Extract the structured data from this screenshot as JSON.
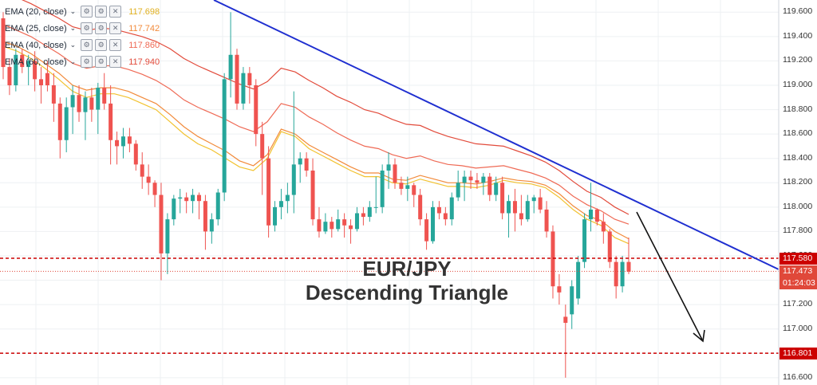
{
  "chart_data": {
    "type": "candlestick",
    "title": "EUR/JPY",
    "subtitle": "Descending Triangle",
    "y_ticks": [
      "119.600",
      "119.400",
      "119.200",
      "119.000",
      "118.800",
      "118.600",
      "118.400",
      "118.200",
      "118.000",
      "117.800",
      "117.600",
      "117.400",
      "117.200",
      "117.000",
      "116.800",
      "116.600"
    ],
    "ylim": [
      116.54,
      119.7
    ],
    "grid": true,
    "indicators": [
      {
        "name": "EMA (20, close)",
        "value": "117.698",
        "color": "#f2c230"
      },
      {
        "name": "EMA (25, close)",
        "value": "117.742",
        "color": "#f28a3a"
      },
      {
        "name": "EMA (40, close)",
        "value": "117.860",
        "color": "#ef6a55"
      },
      {
        "name": "EMA (60, close)",
        "value": "117.940",
        "color": "#e24b3b"
      }
    ],
    "ema_lines": [
      [
        119.32,
        119.28,
        119.22,
        119.14,
        119.05,
        118.95,
        118.9,
        118.93,
        118.93,
        118.9,
        118.85,
        118.8,
        118.7,
        118.6,
        118.52,
        118.47,
        118.4,
        118.33,
        118.3,
        118.4,
        118.62,
        118.58,
        118.48,
        118.42,
        118.36,
        118.3,
        118.25,
        118.25,
        118.2,
        118.19,
        118.23,
        118.2,
        118.17,
        118.17,
        118.16,
        118.18,
        118.22,
        118.2,
        118.19,
        118.16,
        118.08,
        117.98,
        117.9,
        117.85,
        117.75,
        117.7
      ],
      [
        119.36,
        119.32,
        119.26,
        119.18,
        119.1,
        119.0,
        118.96,
        118.98,
        118.98,
        118.95,
        118.9,
        118.85,
        118.76,
        118.66,
        118.58,
        118.52,
        118.46,
        118.38,
        118.34,
        118.43,
        118.64,
        118.6,
        118.51,
        118.45,
        118.39,
        118.33,
        118.28,
        118.28,
        118.23,
        118.22,
        118.26,
        118.23,
        118.2,
        118.2,
        118.19,
        118.21,
        118.24,
        118.22,
        118.21,
        118.18,
        118.11,
        118.01,
        117.93,
        117.89,
        117.8,
        117.74
      ],
      [
        119.5,
        119.45,
        119.4,
        119.33,
        119.26,
        119.18,
        119.14,
        119.16,
        119.16,
        119.13,
        119.09,
        119.04,
        118.97,
        118.88,
        118.82,
        118.77,
        118.72,
        118.66,
        118.62,
        118.7,
        118.85,
        118.82,
        118.74,
        118.68,
        118.61,
        118.55,
        118.5,
        118.48,
        118.43,
        118.4,
        118.42,
        118.38,
        118.35,
        118.34,
        118.32,
        118.33,
        118.34,
        118.31,
        118.28,
        118.24,
        118.18,
        118.09,
        118.02,
        117.97,
        117.9,
        117.86
      ],
      [
        119.75,
        119.72,
        119.67,
        119.61,
        119.55,
        119.48,
        119.45,
        119.47,
        119.46,
        119.43,
        119.4,
        119.36,
        119.3,
        119.22,
        119.16,
        119.11,
        119.06,
        119.01,
        118.97,
        119.03,
        119.14,
        119.11,
        119.04,
        118.98,
        118.91,
        118.86,
        118.8,
        118.77,
        118.72,
        118.68,
        118.67,
        118.62,
        118.58,
        118.55,
        118.52,
        118.51,
        118.5,
        118.46,
        118.42,
        118.37,
        118.3,
        118.21,
        118.13,
        118.08,
        118.0,
        117.94
      ]
    ],
    "candles": [
      {
        "o": 119.55,
        "h": 119.6,
        "l": 119.05,
        "c": 119.15
      },
      {
        "o": 119.15,
        "h": 119.22,
        "l": 118.92,
        "c": 119.0
      },
      {
        "o": 119.0,
        "h": 119.3,
        "l": 118.95,
        "c": 119.25
      },
      {
        "o": 119.25,
        "h": 119.3,
        "l": 119.1,
        "c": 119.15
      },
      {
        "o": 119.15,
        "h": 119.25,
        "l": 119.0,
        "c": 119.2
      },
      {
        "o": 119.2,
        "h": 119.28,
        "l": 118.95,
        "c": 119.05
      },
      {
        "o": 119.05,
        "h": 119.15,
        "l": 118.85,
        "c": 119.0
      },
      {
        "o": 119.1,
        "h": 119.2,
        "l": 118.95,
        "c": 119.0
      },
      {
        "o": 119.0,
        "h": 119.1,
        "l": 118.7,
        "c": 118.85
      },
      {
        "o": 118.85,
        "h": 118.9,
        "l": 118.4,
        "c": 118.55
      },
      {
        "o": 118.55,
        "h": 118.9,
        "l": 118.45,
        "c": 118.82
      },
      {
        "o": 118.82,
        "h": 119.0,
        "l": 118.6,
        "c": 118.92
      },
      {
        "o": 118.92,
        "h": 119.0,
        "l": 118.7,
        "c": 118.78
      },
      {
        "o": 118.78,
        "h": 118.95,
        "l": 118.55,
        "c": 118.9
      },
      {
        "o": 118.9,
        "h": 118.98,
        "l": 118.7,
        "c": 118.8
      },
      {
        "o": 118.8,
        "h": 119.02,
        "l": 118.6,
        "c": 118.98
      },
      {
        "o": 118.98,
        "h": 119.1,
        "l": 118.8,
        "c": 118.85
      },
      {
        "o": 118.85,
        "h": 119.0,
        "l": 118.35,
        "c": 118.55
      },
      {
        "o": 118.55,
        "h": 118.62,
        "l": 118.35,
        "c": 118.5
      },
      {
        "o": 118.5,
        "h": 118.65,
        "l": 118.4,
        "c": 118.58
      },
      {
        "o": 118.58,
        "h": 118.65,
        "l": 118.45,
        "c": 118.52
      },
      {
        "o": 118.52,
        "h": 118.55,
        "l": 118.3,
        "c": 118.35
      },
      {
        "o": 118.35,
        "h": 118.45,
        "l": 118.15,
        "c": 118.25
      },
      {
        "o": 118.25,
        "h": 118.35,
        "l": 118.1,
        "c": 118.2
      },
      {
        "o": 118.2,
        "h": 118.22,
        "l": 118.0,
        "c": 118.1
      },
      {
        "o": 118.1,
        "h": 118.2,
        "l": 117.4,
        "c": 117.62
      },
      {
        "o": 117.62,
        "h": 117.95,
        "l": 117.45,
        "c": 117.9
      },
      {
        "o": 117.9,
        "h": 118.1,
        "l": 117.85,
        "c": 118.07
      },
      {
        "o": 118.07,
        "h": 118.15,
        "l": 117.95,
        "c": 118.08
      },
      {
        "o": 118.08,
        "h": 118.12,
        "l": 117.95,
        "c": 118.05
      },
      {
        "o": 118.05,
        "h": 118.15,
        "l": 117.95,
        "c": 118.1
      },
      {
        "o": 118.1,
        "h": 118.12,
        "l": 117.9,
        "c": 118.05
      },
      {
        "o": 118.05,
        "h": 118.1,
        "l": 117.65,
        "c": 117.8
      },
      {
        "o": 117.8,
        "h": 117.95,
        "l": 117.7,
        "c": 117.9
      },
      {
        "o": 117.9,
        "h": 118.15,
        "l": 117.85,
        "c": 118.12
      },
      {
        "o": 118.12,
        "h": 119.1,
        "l": 118.05,
        "c": 119.05
      },
      {
        "o": 119.05,
        "h": 119.6,
        "l": 118.9,
        "c": 119.25
      },
      {
        "o": 119.25,
        "h": 119.3,
        "l": 118.8,
        "c": 118.85
      },
      {
        "o": 118.85,
        "h": 119.15,
        "l": 118.8,
        "c": 119.1
      },
      {
        "o": 119.1,
        "h": 119.15,
        "l": 118.85,
        "c": 119.0
      },
      {
        "o": 119.0,
        "h": 119.05,
        "l": 118.5,
        "c": 118.6
      },
      {
        "o": 118.6,
        "h": 118.7,
        "l": 118.1,
        "c": 118.4
      },
      {
        "o": 118.4,
        "h": 118.5,
        "l": 117.75,
        "c": 117.85
      },
      {
        "o": 117.85,
        "h": 118.05,
        "l": 117.8,
        "c": 118.0
      },
      {
        "o": 118.0,
        "h": 118.15,
        "l": 117.9,
        "c": 118.05
      },
      {
        "o": 118.05,
        "h": 118.2,
        "l": 117.95,
        "c": 118.1
      },
      {
        "o": 118.1,
        "h": 118.95,
        "l": 117.95,
        "c": 118.35
      },
      {
        "o": 118.35,
        "h": 118.45,
        "l": 118.2,
        "c": 118.4
      },
      {
        "o": 118.4,
        "h": 118.45,
        "l": 118.25,
        "c": 118.3
      },
      {
        "o": 118.3,
        "h": 118.4,
        "l": 117.85,
        "c": 117.9
      },
      {
        "o": 117.9,
        "h": 118.0,
        "l": 117.75,
        "c": 117.8
      },
      {
        "o": 117.8,
        "h": 117.95,
        "l": 117.78,
        "c": 117.88
      },
      {
        "o": 117.88,
        "h": 117.92,
        "l": 117.75,
        "c": 117.82
      },
      {
        "o": 117.82,
        "h": 117.98,
        "l": 117.8,
        "c": 117.9
      },
      {
        "o": 117.9,
        "h": 117.95,
        "l": 117.75,
        "c": 117.85
      },
      {
        "o": 117.85,
        "h": 117.9,
        "l": 117.7,
        "c": 117.82
      },
      {
        "o": 117.82,
        "h": 118.0,
        "l": 117.8,
        "c": 117.95
      },
      {
        "o": 117.95,
        "h": 118.0,
        "l": 117.85,
        "c": 117.92
      },
      {
        "o": 117.92,
        "h": 118.05,
        "l": 117.88,
        "c": 118.0
      },
      {
        "o": 118.0,
        "h": 118.25,
        "l": 117.95,
        "c": 118.0
      },
      {
        "o": 118.0,
        "h": 118.35,
        "l": 117.95,
        "c": 118.3
      },
      {
        "o": 118.3,
        "h": 118.45,
        "l": 118.15,
        "c": 118.35
      },
      {
        "o": 118.35,
        "h": 118.4,
        "l": 118.15,
        "c": 118.2
      },
      {
        "o": 118.2,
        "h": 118.25,
        "l": 118.1,
        "c": 118.15
      },
      {
        "o": 118.15,
        "h": 118.25,
        "l": 118.05,
        "c": 118.18
      },
      {
        "o": 118.18,
        "h": 118.2,
        "l": 118.0,
        "c": 118.1
      },
      {
        "o": 118.1,
        "h": 118.15,
        "l": 117.85,
        "c": 117.9
      },
      {
        "o": 117.9,
        "h": 117.95,
        "l": 117.65,
        "c": 117.72
      },
      {
        "o": 117.72,
        "h": 118.05,
        "l": 117.7,
        "c": 118.0
      },
      {
        "o": 118.0,
        "h": 118.05,
        "l": 117.9,
        "c": 117.95
      },
      {
        "o": 117.95,
        "h": 118.0,
        "l": 117.85,
        "c": 117.9
      },
      {
        "o": 117.9,
        "h": 118.12,
        "l": 117.85,
        "c": 118.08
      },
      {
        "o": 118.08,
        "h": 118.3,
        "l": 118.05,
        "c": 118.2
      },
      {
        "o": 118.2,
        "h": 118.3,
        "l": 118.05,
        "c": 118.25
      },
      {
        "o": 118.25,
        "h": 118.3,
        "l": 118.15,
        "c": 118.22
      },
      {
        "o": 118.22,
        "h": 118.28,
        "l": 118.15,
        "c": 118.2
      },
      {
        "o": 118.2,
        "h": 118.28,
        "l": 118.1,
        "c": 118.25
      },
      {
        "o": 118.25,
        "h": 118.28,
        "l": 118.05,
        "c": 118.1
      },
      {
        "o": 118.1,
        "h": 118.25,
        "l": 118.05,
        "c": 118.2
      },
      {
        "o": 118.2,
        "h": 118.25,
        "l": 117.9,
        "c": 117.95
      },
      {
        "o": 117.95,
        "h": 118.1,
        "l": 117.75,
        "c": 118.05
      },
      {
        "o": 118.05,
        "h": 118.15,
        "l": 117.8,
        "c": 117.95
      },
      {
        "o": 117.95,
        "h": 118.1,
        "l": 117.85,
        "c": 117.9
      },
      {
        "o": 117.9,
        "h": 118.1,
        "l": 117.88,
        "c": 118.05
      },
      {
        "o": 118.05,
        "h": 118.1,
        "l": 117.95,
        "c": 118.08
      },
      {
        "o": 118.08,
        "h": 118.15,
        "l": 117.95,
        "c": 117.98
      },
      {
        "o": 117.98,
        "h": 118.05,
        "l": 117.75,
        "c": 117.8
      },
      {
        "o": 117.8,
        "h": 117.85,
        "l": 117.25,
        "c": 117.35
      },
      {
        "o": 117.35,
        "h": 117.45,
        "l": 117.2,
        "c": 117.3
      },
      {
        "o": 117.1,
        "h": 117.2,
        "l": 116.6,
        "c": 117.05
      },
      {
        "o": 117.12,
        "h": 117.4,
        "l": 117.0,
        "c": 117.35
      },
      {
        "o": 117.25,
        "h": 117.6,
        "l": 117.2,
        "c": 117.55
      },
      {
        "o": 117.55,
        "h": 117.95,
        "l": 117.5,
        "c": 117.9
      },
      {
        "o": 117.9,
        "h": 118.2,
        "l": 117.8,
        "c": 117.98
      },
      {
        "o": 117.98,
        "h": 117.99,
        "l": 117.85,
        "c": 117.88
      },
      {
        "o": 117.88,
        "h": 117.95,
        "l": 117.7,
        "c": 117.8
      },
      {
        "o": 117.8,
        "h": 117.82,
        "l": 117.5,
        "c": 117.55
      },
      {
        "o": 117.55,
        "h": 117.6,
        "l": 117.25,
        "c": 117.35
      },
      {
        "o": 117.35,
        "h": 117.6,
        "l": 117.3,
        "c": 117.55
      },
      {
        "o": 117.55,
        "h": 117.75,
        "l": 117.45,
        "c": 117.47
      }
    ]
  },
  "legend": [
    {
      "label": "EMA (20, close)",
      "value": "117.698",
      "color": "#f2c230"
    },
    {
      "label": "EMA (25, close)",
      "value": "117.742",
      "color": "#f28a3a"
    },
    {
      "label": "EMA (40, close)",
      "value": "117.860",
      "color": "#ef6a55"
    },
    {
      "label": "EMA (60, close)",
      "value": "117.940",
      "color": "#e24b3b"
    }
  ],
  "levels": {
    "resistance": {
      "price": 117.58,
      "label": "117.580",
      "color": "#cc0000"
    },
    "support": {
      "price": 116.801,
      "label": "116.801",
      "color": "#cc0000"
    },
    "current": {
      "price": 117.473,
      "label": "117.473",
      "color": "#e0483a"
    },
    "countdown": {
      "label": "01:24:03",
      "color": "#e0483a"
    }
  },
  "annotation": {
    "line1": "EUR/JPY",
    "line2": "Descending Triangle"
  },
  "colors": {
    "up": "#26a69a",
    "down": "#ef5350",
    "trendline": "#1f2fd0",
    "arrow": "#111111",
    "grid": "#eef0f3"
  }
}
